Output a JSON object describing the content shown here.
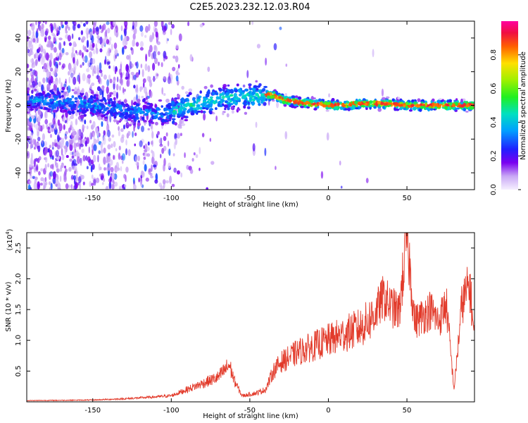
{
  "title": "C2E5.2023.232.12.03.R04",
  "chart_data": [
    {
      "type": "heatmap",
      "xlabel": "Height of straight line (km)",
      "ylabel": "Frequency (Hz)",
      "xlim": [
        -192,
        93
      ],
      "ylim": [
        -50,
        50
      ],
      "xticks": [
        -150,
        -100,
        -50,
        0,
        50
      ],
      "yticks": [
        -40,
        -20,
        0,
        20,
        40
      ],
      "colorbar": {
        "label": "Normalized spectral amplitude",
        "range": [
          0,
          1
        ],
        "ticks": [
          "0.0",
          "0.2",
          "0.4",
          "0.6",
          "0.8"
        ]
      },
      "ridge": {
        "x": [
          -190,
          -170,
          -150,
          -130,
          -110,
          -100,
          -90,
          -80,
          -70,
          -60,
          -50,
          -42,
          -35,
          -28,
          -20,
          -10,
          0,
          10,
          20,
          30,
          40,
          50,
          60,
          70,
          80,
          92
        ],
        "y": [
          3,
          2,
          0,
          -3,
          -5,
          -4,
          -1,
          2,
          4,
          5,
          5,
          6,
          6,
          3,
          2,
          1,
          0,
          0,
          1,
          1,
          1,
          0,
          0,
          0,
          0,
          0
        ]
      }
    },
    {
      "type": "line",
      "xlabel": "Height of straight line (km)",
      "ylabel": "SNR (10 * v/v)",
      "y_multiplier": "(x10",
      "y_multiplier_exp": "4",
      "xlim": [
        -192,
        93
      ],
      "ylim": [
        0,
        2.75
      ],
      "xticks": [
        -150,
        -100,
        -50,
        0,
        50
      ],
      "yticks": [
        0.5,
        1.0,
        1.5,
        2.0,
        2.5
      ],
      "color": "#e23a2a",
      "anchors": {
        "x": [
          -192,
          -150,
          -130,
          -110,
          -100,
          -92,
          -80,
          -70,
          -63,
          -60,
          -55,
          -50,
          -45,
          -40,
          -35,
          -30,
          -25,
          -20,
          -15,
          -10,
          -5,
          0,
          5,
          10,
          15,
          20,
          25,
          30,
          35,
          40,
          45,
          50,
          55,
          60,
          65,
          70,
          75,
          80,
          85,
          90,
          93
        ],
        "y": [
          0.02,
          0.03,
          0.05,
          0.08,
          0.1,
          0.18,
          0.3,
          0.4,
          0.6,
          0.35,
          0.1,
          0.12,
          0.15,
          0.2,
          0.5,
          0.65,
          0.72,
          0.8,
          0.85,
          0.9,
          0.95,
          1.0,
          1.05,
          1.1,
          1.15,
          1.2,
          1.3,
          1.45,
          1.7,
          1.55,
          1.45,
          2.7,
          1.3,
          1.4,
          1.5,
          1.3,
          1.6,
          0.2,
          1.6,
          1.9,
          1.0
        ]
      }
    }
  ]
}
